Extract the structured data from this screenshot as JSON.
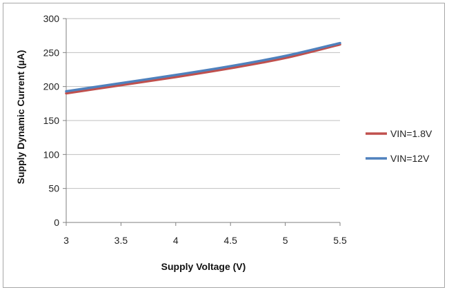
{
  "chart_data": {
    "type": "line",
    "title": "",
    "xlabel": "Supply Voltage (V)",
    "ylabel": "Supply Dynamic Current (µA)",
    "xlim": [
      3,
      5.5
    ],
    "ylim": [
      0,
      300
    ],
    "x_ticks": [
      "3",
      "3.5",
      "4",
      "4.5",
      "5",
      "5.5"
    ],
    "y_ticks": [
      "0",
      "50",
      "100",
      "150",
      "200",
      "250",
      "300"
    ],
    "grid": "horizontal",
    "legend_position": "right",
    "series": [
      {
        "name": "VIN=1.8V",
        "color": "#c0504d",
        "x": [
          3,
          3.5,
          4,
          4.5,
          5,
          5.5
        ],
        "y": [
          190,
          202,
          214,
          227,
          242,
          262
        ]
      },
      {
        "name": "VIN=12V",
        "color": "#4f81bd",
        "x": [
          3,
          3.5,
          4,
          4.5,
          5,
          5.5
        ],
        "y": [
          193,
          205,
          217,
          230,
          245,
          264
        ]
      }
    ]
  }
}
